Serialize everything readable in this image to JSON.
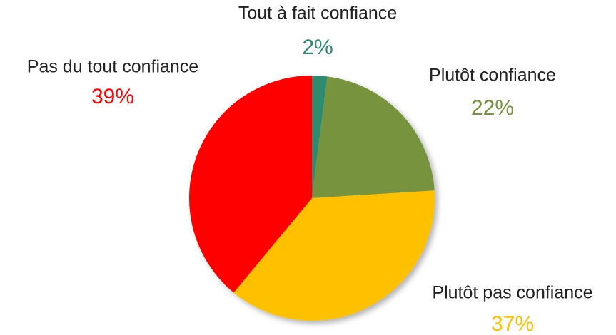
{
  "chart_data": {
    "type": "pie",
    "categories": [
      "Tout à fait confiance",
      "Plutôt confiance",
      "Plutôt pas confiance",
      "Pas du tout confiance"
    ],
    "values": [
      2,
      22,
      37,
      39
    ],
    "value_labels": [
      "2%",
      "22%",
      "37%",
      "39%"
    ],
    "colors": [
      "#2e8b6f",
      "#77933c",
      "#ffc000",
      "#ff0000"
    ]
  }
}
